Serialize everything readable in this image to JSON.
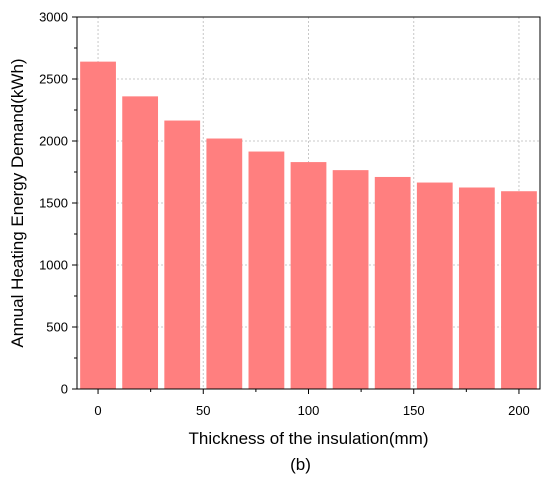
{
  "chart_data": {
    "type": "bar",
    "x": [
      0,
      20,
      40,
      60,
      80,
      100,
      120,
      140,
      160,
      180,
      200
    ],
    "values": [
      2640,
      2360,
      2165,
      2020,
      1915,
      1830,
      1765,
      1710,
      1665,
      1625,
      1595
    ],
    "xlabel": "Thickness of the insulation(mm)",
    "ylabel": "Annual Heating Energy Demand(kWh)",
    "xlim": [
      -10,
      210
    ],
    "ylim": [
      0,
      3000
    ],
    "xticks": [
      0,
      50,
      100,
      150,
      200
    ],
    "yticks": [
      0,
      500,
      1000,
      1500,
      2000,
      2500,
      3000
    ],
    "grid": true,
    "bar_color": "#ff7f7f",
    "caption": "(b)"
  }
}
